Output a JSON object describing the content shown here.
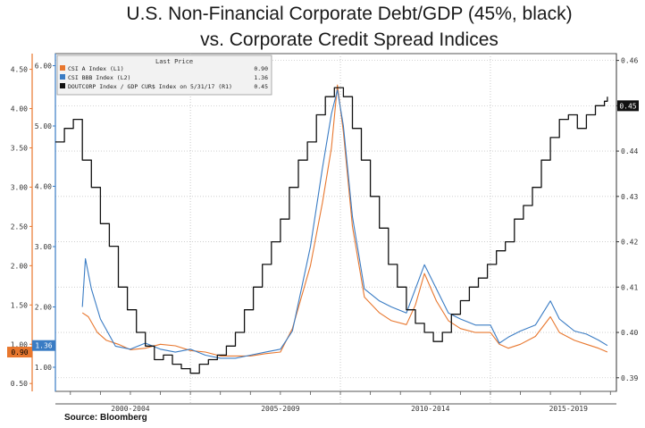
{
  "title_line1": "U.S. Non-Financial Corporate Debt/GDP (45%, black)",
  "title_line2": "vs. Corporate Credit Spread Indices",
  "source": "Source: Bloomberg",
  "legend": {
    "header": "Last Price",
    "rows": [
      {
        "label": "CSI A Index  (L1)",
        "value": "0.90",
        "color": "#e8772e"
      },
      {
        "label": "CSI BBB Index  (L2)",
        "value": "1.36",
        "color": "#3a7cc4"
      },
      {
        "label": "DOUTCORP Index / GDP CUR$ Index on 5/31/17  (R1)",
        "value": "0.45",
        "color": "#111111"
      }
    ]
  },
  "colors": {
    "csi_a": "#e8772e",
    "csi_bbb": "#3a7cc4",
    "ratio": "#111111"
  },
  "chart_data": {
    "type": "line",
    "x_ticks": [
      "2000-2004",
      "2005-2009",
      "2010-2014",
      "2015-2019"
    ],
    "xlim": [
      1999.5,
      2018.2
    ],
    "axes": {
      "L1": {
        "ylim": [
          0.4,
          4.7
        ],
        "ticks": [
          "0.50",
          "1.00",
          "1.50",
          "2.00",
          "2.50",
          "3.00",
          "3.50",
          "4.00",
          "4.50"
        ],
        "last_label": "0.90"
      },
      "L2": {
        "ylim": [
          0.6,
          6.2
        ],
        "ticks": [
          "1.00",
          "2.00",
          "3.00",
          "4.00",
          "5.00",
          "6.00"
        ],
        "last_label": "1.36"
      },
      "R1": {
        "ylim": [
          0.387,
          0.4615
        ],
        "ticks": [
          "0.39",
          "0.40",
          "0.41",
          "0.42",
          "0.43",
          "0.44",
          "0.45",
          "0.46"
        ],
        "last_label": "0.45"
      }
    },
    "series": [
      {
        "name": "CSI A Index",
        "axis": "L1",
        "data": [
          [
            2000.4,
            1.4
          ],
          [
            2000.6,
            1.35
          ],
          [
            2000.9,
            1.15
          ],
          [
            2001.2,
            1.05
          ],
          [
            2001.6,
            1.0
          ],
          [
            2002.0,
            0.93
          ],
          [
            2002.5,
            0.95
          ],
          [
            2003.0,
            1.0
          ],
          [
            2003.5,
            0.98
          ],
          [
            2004.0,
            0.92
          ],
          [
            2004.5,
            0.9
          ],
          [
            2005.0,
            0.85
          ],
          [
            2005.5,
            0.85
          ],
          [
            2006.0,
            0.85
          ],
          [
            2006.5,
            0.88
          ],
          [
            2007.0,
            0.9
          ],
          [
            2007.4,
            1.2
          ],
          [
            2007.7,
            1.6
          ],
          [
            2008.0,
            2.0
          ],
          [
            2008.4,
            2.8
          ],
          [
            2008.7,
            3.5
          ],
          [
            2008.9,
            4.3
          ],
          [
            2009.1,
            3.7
          ],
          [
            2009.4,
            2.5
          ],
          [
            2009.8,
            1.6
          ],
          [
            2010.3,
            1.4
          ],
          [
            2010.7,
            1.3
          ],
          [
            2011.2,
            1.25
          ],
          [
            2011.5,
            1.5
          ],
          [
            2011.8,
            1.9
          ],
          [
            2012.2,
            1.55
          ],
          [
            2012.6,
            1.3
          ],
          [
            2013.0,
            1.2
          ],
          [
            2013.5,
            1.15
          ],
          [
            2014.0,
            1.15
          ],
          [
            2014.3,
            1.0
          ],
          [
            2014.6,
            0.95
          ],
          [
            2015.0,
            1.0
          ],
          [
            2015.5,
            1.1
          ],
          [
            2016.0,
            1.35
          ],
          [
            2016.3,
            1.15
          ],
          [
            2016.8,
            1.05
          ],
          [
            2017.2,
            1.0
          ],
          [
            2017.6,
            0.95
          ],
          [
            2017.9,
            0.9
          ]
        ]
      },
      {
        "name": "CSI BBB Index",
        "axis": "L2",
        "data": [
          [
            2000.4,
            2.0
          ],
          [
            2000.5,
            2.8
          ],
          [
            2000.7,
            2.3
          ],
          [
            2001.0,
            1.8
          ],
          [
            2001.5,
            1.35
          ],
          [
            2002.0,
            1.3
          ],
          [
            2002.5,
            1.4
          ],
          [
            2003.0,
            1.3
          ],
          [
            2003.5,
            1.25
          ],
          [
            2004.0,
            1.3
          ],
          [
            2004.5,
            1.2
          ],
          [
            2005.0,
            1.15
          ],
          [
            2005.5,
            1.15
          ],
          [
            2006.0,
            1.2
          ],
          [
            2006.5,
            1.25
          ],
          [
            2007.0,
            1.3
          ],
          [
            2007.4,
            1.6
          ],
          [
            2007.7,
            2.3
          ],
          [
            2008.0,
            3.0
          ],
          [
            2008.4,
            4.3
          ],
          [
            2008.7,
            5.2
          ],
          [
            2008.9,
            5.6
          ],
          [
            2009.1,
            5.0
          ],
          [
            2009.4,
            3.5
          ],
          [
            2009.8,
            2.3
          ],
          [
            2010.3,
            2.1
          ],
          [
            2010.7,
            2.0
          ],
          [
            2011.2,
            1.9
          ],
          [
            2011.5,
            2.3
          ],
          [
            2011.8,
            2.7
          ],
          [
            2012.2,
            2.3
          ],
          [
            2012.6,
            1.9
          ],
          [
            2013.0,
            1.8
          ],
          [
            2013.5,
            1.7
          ],
          [
            2014.0,
            1.7
          ],
          [
            2014.3,
            1.4
          ],
          [
            2014.6,
            1.5
          ],
          [
            2015.0,
            1.6
          ],
          [
            2015.5,
            1.7
          ],
          [
            2016.0,
            2.1
          ],
          [
            2016.3,
            1.8
          ],
          [
            2016.8,
            1.6
          ],
          [
            2017.2,
            1.55
          ],
          [
            2017.6,
            1.45
          ],
          [
            2017.9,
            1.36
          ]
        ]
      },
      {
        "name": "DOUTCORP Index / GDP CUR$ Index on 5/31/17",
        "axis": "R1",
        "step": true,
        "data": [
          [
            1999.5,
            0.442
          ],
          [
            1999.8,
            0.445
          ],
          [
            2000.1,
            0.447
          ],
          [
            2000.4,
            0.438
          ],
          [
            2000.7,
            0.432
          ],
          [
            2001.0,
            0.424
          ],
          [
            2001.3,
            0.419
          ],
          [
            2001.6,
            0.41
          ],
          [
            2001.9,
            0.405
          ],
          [
            2002.2,
            0.4
          ],
          [
            2002.5,
            0.397
          ],
          [
            2002.8,
            0.394
          ],
          [
            2003.1,
            0.395
          ],
          [
            2003.4,
            0.393
          ],
          [
            2003.7,
            0.392
          ],
          [
            2004.0,
            0.391
          ],
          [
            2004.3,
            0.393
          ],
          [
            2004.6,
            0.394
          ],
          [
            2004.9,
            0.395
          ],
          [
            2005.2,
            0.397
          ],
          [
            2005.5,
            0.4
          ],
          [
            2005.8,
            0.405
          ],
          [
            2006.1,
            0.41
          ],
          [
            2006.4,
            0.415
          ],
          [
            2006.7,
            0.42
          ],
          [
            2007.0,
            0.425
          ],
          [
            2007.3,
            0.432
          ],
          [
            2007.6,
            0.438
          ],
          [
            2007.9,
            0.442
          ],
          [
            2008.2,
            0.448
          ],
          [
            2008.5,
            0.452
          ],
          [
            2008.8,
            0.454
          ],
          [
            2009.1,
            0.452
          ],
          [
            2009.4,
            0.445
          ],
          [
            2009.7,
            0.438
          ],
          [
            2010.0,
            0.43
          ],
          [
            2010.3,
            0.423
          ],
          [
            2010.6,
            0.415
          ],
          [
            2010.9,
            0.41
          ],
          [
            2011.2,
            0.405
          ],
          [
            2011.5,
            0.402
          ],
          [
            2011.8,
            0.4
          ],
          [
            2012.1,
            0.398
          ],
          [
            2012.4,
            0.4
          ],
          [
            2012.7,
            0.404
          ],
          [
            2013.0,
            0.407
          ],
          [
            2013.3,
            0.41
          ],
          [
            2013.6,
            0.412
          ],
          [
            2013.9,
            0.415
          ],
          [
            2014.2,
            0.418
          ],
          [
            2014.5,
            0.42
          ],
          [
            2014.8,
            0.425
          ],
          [
            2015.1,
            0.428
          ],
          [
            2015.4,
            0.432
          ],
          [
            2015.7,
            0.438
          ],
          [
            2016.0,
            0.443
          ],
          [
            2016.3,
            0.447
          ],
          [
            2016.6,
            0.448
          ],
          [
            2016.9,
            0.445
          ],
          [
            2017.2,
            0.448
          ],
          [
            2017.5,
            0.45
          ],
          [
            2017.8,
            0.451
          ],
          [
            2017.9,
            0.452
          ]
        ]
      }
    ]
  }
}
